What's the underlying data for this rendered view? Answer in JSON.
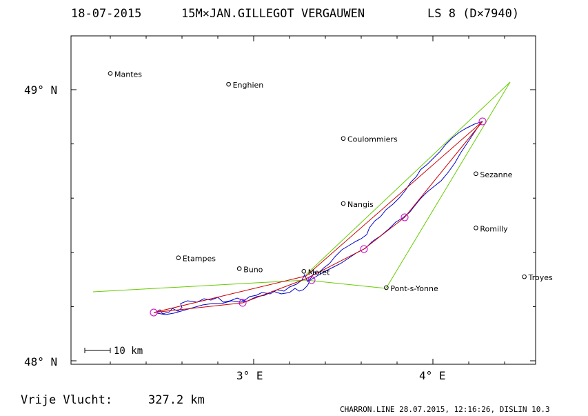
{
  "header": {
    "date": "18-07-2015",
    "pilot": "15M×JAN.GILLEGOT VERGAUWEN",
    "logger": "LS 8 (D×7940)"
  },
  "axes": {
    "lat_ticks": [
      {
        "value": 49,
        "label": "49° N"
      },
      {
        "value": 48,
        "label": "48° N"
      }
    ],
    "lon_ticks": [
      {
        "value": 3,
        "label": "3° E"
      },
      {
        "value": 4,
        "label": "4° E"
      }
    ],
    "lon_range": [
      2.0,
      4.6
    ],
    "lat_range": [
      48.0,
      49.2
    ]
  },
  "scale_bar": {
    "label": "10 km"
  },
  "footer": {
    "distance_label": "Vrije Vlucht:",
    "distance_value": "327.2 km",
    "credit": "CHARRON.LINE 28.07.2015, 12:16:26, DISLIN 10.3"
  },
  "places": [
    {
      "name": "Mantes",
      "lon": 2.2,
      "lat": 49.06
    },
    {
      "name": "Enghien",
      "lon": 2.86,
      "lat": 49.02
    },
    {
      "name": "Coulommiers",
      "lon": 3.5,
      "lat": 48.82
    },
    {
      "name": "Sezanne",
      "lon": 4.24,
      "lat": 48.69
    },
    {
      "name": "Nangis",
      "lon": 3.5,
      "lat": 48.58
    },
    {
      "name": "Romilly",
      "lon": 4.24,
      "lat": 48.49
    },
    {
      "name": "Etampes",
      "lon": 2.58,
      "lat": 48.38
    },
    {
      "name": "Buno",
      "lon": 2.92,
      "lat": 48.34
    },
    {
      "name": "Moret",
      "lon": 3.28,
      "lat": 48.33
    },
    {
      "name": "Pont-s-Yonne",
      "lon": 3.74,
      "lat": 48.27
    },
    {
      "name": "Troyes",
      "lon": 4.51,
      "lat": 48.31
    }
  ],
  "colors": {
    "track": "#0000cc",
    "task": "#cc0000",
    "sector": "#66cc00",
    "turnpoint": "#cc00cc",
    "frame": "#000000"
  }
}
